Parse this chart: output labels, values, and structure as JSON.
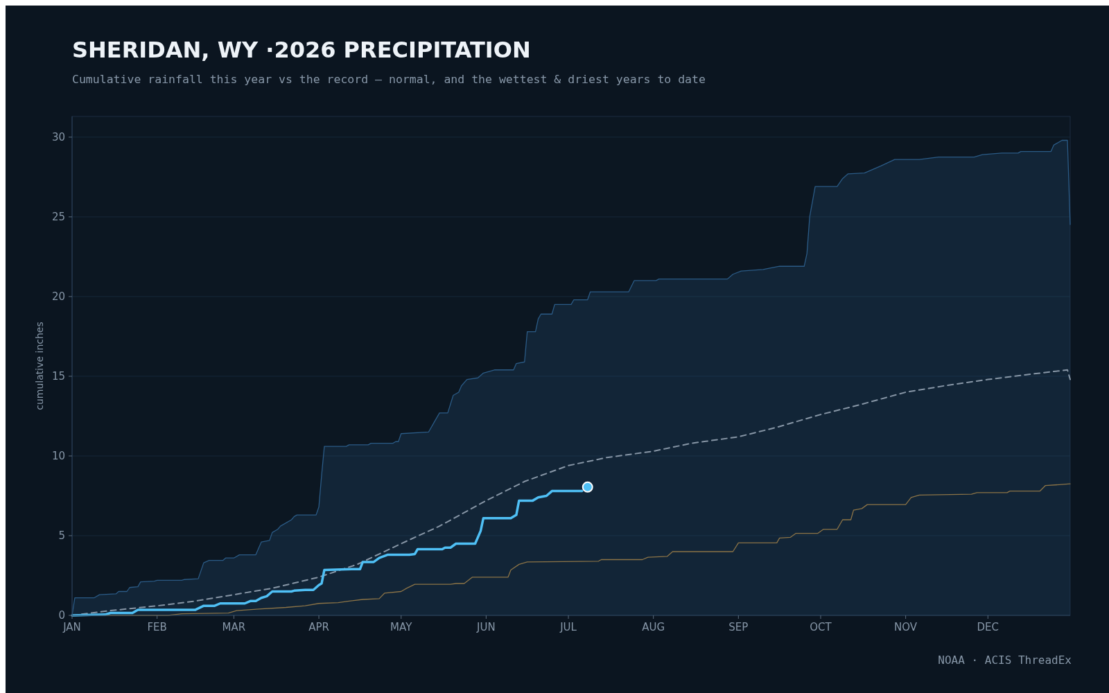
{
  "chart_data": {
    "type": "line",
    "title": "SHERIDAN, WY ·2026 PRECIPITATION",
    "subtitle": "Cumulative rainfall this year vs the record — normal, and the wettest & driest years to date",
    "ylabel": "cumulative inches",
    "annotations": [
      "NOAA · ACIS ThreadEx"
    ],
    "xlim": [
      "--01-01",
      "--12-31"
    ],
    "xticks": [
      {
        "value": "--01-01",
        "label": "JAN"
      },
      {
        "value": "--02-01",
        "label": "FEB"
      },
      {
        "value": "--03-01",
        "label": "MAR"
      },
      {
        "value": "--04-01",
        "label": "APR"
      },
      {
        "value": "--05-01",
        "label": "MAY"
      },
      {
        "value": "--06-01",
        "label": "JUN"
      },
      {
        "value": "--07-01",
        "label": "JUL"
      },
      {
        "value": "--08-01",
        "label": "AUG"
      },
      {
        "value": "--09-01",
        "label": "SEP"
      },
      {
        "value": "--10-01",
        "label": "OCT"
      },
      {
        "value": "--11-01",
        "label": "NOV"
      },
      {
        "value": "--12-01",
        "label": "DEC"
      }
    ],
    "ylim": [
      0,
      31.3
    ],
    "yticks": [
      0,
      5,
      10,
      15,
      20,
      25,
      30
    ],
    "grid": "y",
    "series": [
      {
        "type": "area",
        "color": "#2b5b86",
        "x": [
          "--01-01",
          "--01-02",
          "--01-09",
          "--01-11",
          "--01-17",
          "--01-18",
          "--01-21",
          "--01-22",
          "--01-25",
          "--01-26",
          "--01-31",
          "--02-01",
          "--02-10",
          "--02-11",
          "--02-16",
          "--02-18",
          "--02-20",
          "--02-25",
          "--02-26",
          "--03-01",
          "--03-03",
          "--03-09",
          "--03-11",
          "--03-14",
          "--03-15",
          "--03-17",
          "--03-18",
          "--03-20",
          "--03-22",
          "--03-23",
          "--03-24",
          "--03-31",
          "--04-01",
          "--04-02",
          "--04-03",
          "--04-11",
          "--04-12",
          "--04-19",
          "--04-20",
          "--04-28",
          "--04-29",
          "--04-30",
          "--05-01",
          "--05-11",
          "--05-13",
          "--05-15",
          "--05-18",
          "--05-20",
          "--05-22",
          "--05-23",
          "--05-25",
          "--05-29",
          "--05-31",
          "--06-04",
          "--06-11",
          "--06-12",
          "--06-15",
          "--06-16",
          "--06-19",
          "--06-20",
          "--06-21",
          "--06-25",
          "--06-26",
          "--07-02",
          "--07-03",
          "--07-08",
          "--07-09",
          "--07-23",
          "--07-25",
          "--08-02",
          "--08-03",
          "--08-28",
          "--08-30",
          "--09-02",
          "--09-10",
          "--09-16",
          "--09-25",
          "--09-26",
          "--09-27",
          "--09-29",
          "--10-07",
          "--10-09",
          "--10-11",
          "--10-17",
          "--10-23",
          "--10-28",
          "--11-06",
          "--11-13",
          "--11-26",
          "--11-29",
          "--12-06",
          "--12-12",
          "--12-13",
          "--12-24",
          "--12-25",
          "--12-28",
          "--12-30",
          "--12-31"
        ],
        "values": [
          0,
          1.1,
          1.1,
          1.3,
          1.35,
          1.5,
          1.5,
          1.75,
          1.8,
          2.1,
          2.15,
          2.2,
          2.2,
          2.25,
          2.3,
          3.3,
          3.45,
          3.45,
          3.6,
          3.6,
          3.8,
          3.8,
          4.6,
          4.7,
          5.2,
          5.4,
          5.6,
          5.8,
          6.0,
          6.2,
          6.3,
          6.3,
          6.8,
          8.8,
          10.6,
          10.6,
          10.7,
          10.7,
          10.8,
          10.8,
          10.9,
          10.9,
          11.4,
          11.5,
          12.1,
          12.7,
          12.7,
          13.8,
          14.0,
          14.4,
          14.8,
          14.9,
          15.2,
          15.4,
          15.4,
          15.8,
          15.9,
          17.8,
          17.8,
          18.6,
          18.9,
          18.9,
          19.5,
          19.5,
          19.8,
          19.8,
          20.3,
          20.3,
          21.0,
          21.0,
          21.1,
          21.1,
          21.4,
          21.6,
          21.7,
          21.9,
          21.9,
          22.7,
          25.0,
          26.9,
          26.9,
          27.4,
          27.7,
          27.75,
          28.2,
          28.6,
          28.6,
          28.75,
          28.75,
          28.9,
          29.0,
          29.0,
          29.1,
          29.1,
          29.5,
          29.8,
          29.8,
          24.5
        ]
      },
      {
        "color": "#8c7447",
        "x": [
          "--01-01",
          "--02-05",
          "--02-10",
          "--02-27",
          "--03-02",
          "--03-10",
          "--03-20",
          "--03-27",
          "--04-01",
          "--04-08",
          "--04-12",
          "--04-17",
          "--04-23",
          "--04-25",
          "--05-01",
          "--05-03",
          "--05-06",
          "--05-19",
          "--05-21",
          "--05-24",
          "--05-27",
          "--06-09",
          "--06-10",
          "--06-13",
          "--06-16",
          "--07-12",
          "--07-13",
          "--07-28",
          "--07-30",
          "--08-06",
          "--08-08",
          "--08-30",
          "--09-01",
          "--09-15",
          "--09-16",
          "--09-20",
          "--09-22",
          "--09-30",
          "--10-02",
          "--10-07",
          "--10-09",
          "--10-12",
          "--10-13",
          "--10-16",
          "--10-18",
          "--11-01",
          "--11-03",
          "--11-06",
          "--11-25",
          "--11-27",
          "--12-08",
          "--12-09",
          "--12-20",
          "--12-22",
          "--12-27",
          "--12-31"
        ],
        "values": [
          0,
          0,
          0.1,
          0.15,
          0.3,
          0.4,
          0.5,
          0.6,
          0.75,
          0.8,
          0.9,
          1.0,
          1.05,
          1.4,
          1.5,
          1.7,
          1.95,
          1.95,
          2.0,
          2.0,
          2.4,
          2.4,
          2.85,
          3.2,
          3.35,
          3.4,
          3.5,
          3.5,
          3.65,
          3.7,
          4.0,
          4.0,
          4.55,
          4.55,
          4.85,
          4.9,
          5.15,
          5.15,
          5.4,
          5.4,
          6.0,
          6.0,
          6.6,
          6.7,
          6.95,
          6.95,
          7.4,
          7.55,
          7.6,
          7.7,
          7.7,
          7.8,
          7.8,
          8.15,
          8.2,
          8.25
        ]
      },
      {
        "color": "#8796a6",
        "line_style": "dashed",
        "x": [
          "--01-01",
          "--01-15",
          "--02-01",
          "--02-15",
          "--03-01",
          "--03-15",
          "--04-01",
          "--04-15",
          "--05-01",
          "--05-15",
          "--06-01",
          "--06-15",
          "--07-01",
          "--07-15",
          "--08-01",
          "--08-15",
          "--09-01",
          "--09-15",
          "--10-01",
          "--10-15",
          "--11-01",
          "--11-15",
          "--12-01",
          "--12-15",
          "--12-30",
          "--12-31"
        ],
        "values": [
          0,
          0.3,
          0.6,
          0.9,
          1.3,
          1.7,
          2.4,
          3.2,
          4.5,
          5.6,
          7.2,
          8.4,
          9.4,
          9.9,
          10.3,
          10.8,
          11.2,
          11.8,
          12.6,
          13.2,
          14.0,
          14.4,
          14.8,
          15.1,
          15.4,
          14.8
        ]
      },
      {
        "color": "#4fc0f5",
        "x": [
          "--01-01",
          "--01-13",
          "--01-15",
          "--01-23",
          "--01-25",
          "--02-15",
          "--02-18",
          "--02-22",
          "--02-24",
          "--03-05",
          "--03-07",
          "--03-09",
          "--03-11",
          "--03-13",
          "--03-15",
          "--03-22",
          "--03-23",
          "--03-27",
          "--03-30",
          "--04-01",
          "--04-02",
          "--04-03",
          "--04-13",
          "--04-16",
          "--04-17",
          "--04-21",
          "--04-23",
          "--04-26",
          "--05-04",
          "--05-06",
          "--05-07",
          "--05-16",
          "--05-17",
          "--05-19",
          "--05-21",
          "--05-28",
          "--05-30",
          "--05-31",
          "--06-10",
          "--06-12",
          "--06-13",
          "--06-18",
          "--06-20",
          "--06-23",
          "--06-25",
          "--07-06"
        ],
        "values": [
          0,
          0.05,
          0.15,
          0.15,
          0.35,
          0.35,
          0.6,
          0.6,
          0.75,
          0.75,
          0.9,
          0.9,
          1.1,
          1.2,
          1.5,
          1.5,
          1.55,
          1.6,
          1.6,
          1.9,
          2.0,
          2.85,
          2.9,
          2.9,
          3.35,
          3.35,
          3.6,
          3.8,
          3.8,
          3.85,
          4.15,
          4.15,
          4.25,
          4.25,
          4.5,
          4.5,
          5.3,
          6.1,
          6.1,
          6.3,
          7.2,
          7.2,
          7.4,
          7.5,
          7.8,
          7.8
        ]
      },
      {
        "type": "scatter",
        "color": "#4fc0f5",
        "marker": "circle",
        "x": [
          "--07-08"
        ],
        "values": [
          8.05
        ]
      }
    ]
  }
}
